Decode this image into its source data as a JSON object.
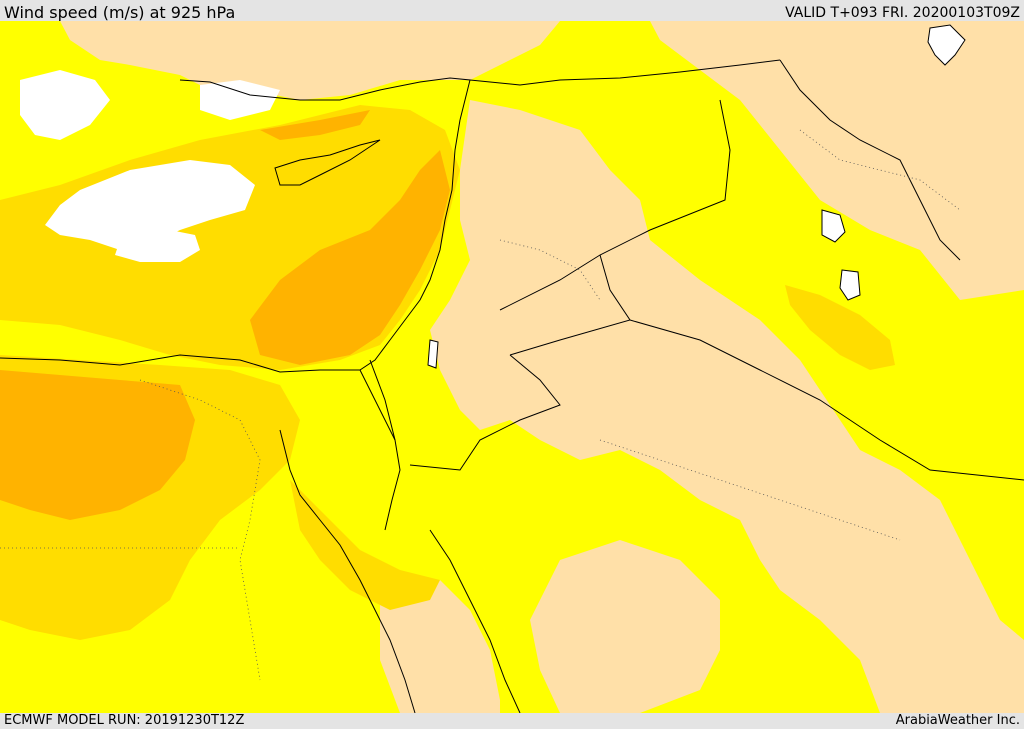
{
  "header": {
    "title": "Wind speed (m/s) at 925 hPa",
    "valid": "VALID T+093 FRI. 20200103T09Z"
  },
  "footer": {
    "model_run": "ECMWF MODEL RUN: 20191230T12Z",
    "credit": "ArabiaWeather Inc."
  },
  "colors": {
    "calm": "#ffffff",
    "light": "#ffe0a8",
    "moderate": "#ffff00",
    "fresh": "#ffdd00",
    "strong": "#ffb300",
    "coastline": "#000000"
  }
}
